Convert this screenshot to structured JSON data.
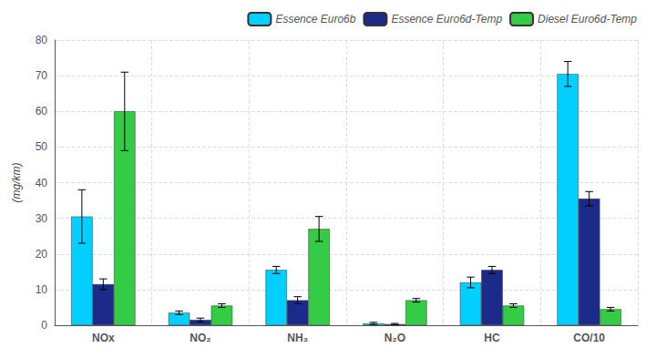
{
  "chart_data": {
    "type": "bar",
    "categories": [
      "NOx",
      "NO₂",
      "NH₃",
      "N₂O",
      "HC",
      "CO/10"
    ],
    "series": [
      {
        "name": "Essence Euro6b",
        "color": "#00CFFF",
        "values": [
          30.5,
          3.5,
          15.5,
          0.5,
          12.0,
          70.5
        ],
        "errors": [
          7.5,
          0.5,
          1.0,
          0.3,
          1.5,
          3.5
        ]
      },
      {
        "name": "Essence Euro6d-Temp",
        "color": "#1C2A8A",
        "values": [
          11.5,
          1.5,
          7.0,
          0.3,
          15.5,
          35.5
        ],
        "errors": [
          1.5,
          0.5,
          1.0,
          0.2,
          1.0,
          2.0
        ]
      },
      {
        "name": "Diesel Euro6d-Temp",
        "color": "#33CC44",
        "values": [
          60.0,
          5.5,
          27.0,
          7.0,
          5.5,
          4.5
        ],
        "errors": [
          11.0,
          0.5,
          3.5,
          0.5,
          0.5,
          0.5
        ]
      }
    ],
    "ylabel": "(mg/km)",
    "ylim": [
      0,
      80
    ],
    "yticks": [
      0,
      10,
      20,
      30,
      40,
      50,
      60,
      70,
      80
    ],
    "grid": true,
    "legend": "upper right"
  }
}
